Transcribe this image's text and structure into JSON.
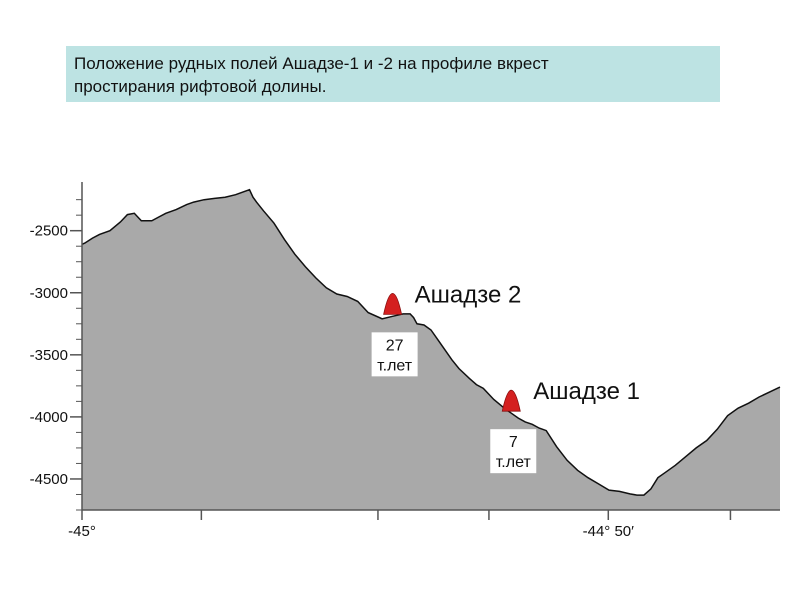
{
  "title": {
    "line1": "Положение рудных полей Ашадзе-1 и -2  на профиле вкрест",
    "line2": "простирания рифтовой долины."
  },
  "colors": {
    "title_bg": "#bde3e3",
    "profile_fill": "#a9a9a9",
    "marker": "#d42020"
  },
  "chart_data": {
    "type": "area",
    "title": "Положение рудных полей Ашадзе-1 и -2  на профиле вкрест простирания рифтовой долины.",
    "xlabel": "",
    "ylabel": "",
    "x": [
      0,
      0.004,
      0.015,
      0.025,
      0.04,
      0.055,
      0.065,
      0.075,
      0.085,
      0.1,
      0.11,
      0.12,
      0.135,
      0.15,
      0.16,
      0.175,
      0.19,
      0.205,
      0.22,
      0.23,
      0.24,
      0.245,
      0.25,
      0.26,
      0.275,
      0.29,
      0.305,
      0.32,
      0.335,
      0.35,
      0.365,
      0.38,
      0.395,
      0.41,
      0.43,
      0.445,
      0.46,
      0.47,
      0.475,
      0.48,
      0.49,
      0.5,
      0.51,
      0.52,
      0.53,
      0.54,
      0.555,
      0.565,
      0.575,
      0.59,
      0.605,
      0.615,
      0.625,
      0.635,
      0.645,
      0.655,
      0.665,
      0.68,
      0.695,
      0.71,
      0.725,
      0.74,
      0.755,
      0.77,
      0.785,
      0.795,
      0.805,
      0.815,
      0.825,
      0.835,
      0.85,
      0.865,
      0.88,
      0.895,
      0.91,
      0.925,
      0.94,
      0.955,
      0.97,
      0.985,
      1
    ],
    "y": [
      -2610,
      -2600,
      -2560,
      -2530,
      -2500,
      -2430,
      -2370,
      -2360,
      -2420,
      -2420,
      -2390,
      -2360,
      -2330,
      -2290,
      -2270,
      -2250,
      -2240,
      -2230,
      -2210,
      -2190,
      -2170,
      -2230,
      -2270,
      -2340,
      -2440,
      -2570,
      -2690,
      -2790,
      -2880,
      -2960,
      -3010,
      -3030,
      -3070,
      -3160,
      -3210,
      -3190,
      -3170,
      -3170,
      -3200,
      -3250,
      -3260,
      -3300,
      -3380,
      -3460,
      -3540,
      -3610,
      -3690,
      -3740,
      -3770,
      -3860,
      -3930,
      -3970,
      -4010,
      -4040,
      -4060,
      -4090,
      -4110,
      -4240,
      -4350,
      -4430,
      -4490,
      -4540,
      -4590,
      -4600,
      -4620,
      -4630,
      -4630,
      -4580,
      -4490,
      -4450,
      -4390,
      -4320,
      -4250,
      -4190,
      -4100,
      -3990,
      -3930,
      -3890,
      -3840,
      -3800,
      -3760
    ],
    "ylim": [
      -4750,
      -2140
    ],
    "y_ticks": [
      -2500,
      -3000,
      -3500,
      -4000,
      -4500
    ],
    "y_tick_labels": [
      "-2500",
      "-3000",
      "-3500",
      "-4000",
      "-4500"
    ],
    "y_minor_step": 125,
    "x_major_ticks": [
      0,
      0.171,
      0.424,
      0.583,
      0.754,
      0.929
    ],
    "x_tick_labels": [
      {
        "x": 0,
        "label": "-45°"
      },
      {
        "x": 0.754,
        "label": "-44° 50′"
      }
    ],
    "grid": false,
    "legend": "none",
    "annotations": [
      {
        "name": "Ашадзе 2",
        "x": 0.445,
        "y": -3190,
        "age": [
          "27",
          "т.лет"
        ]
      },
      {
        "name": "Ашадзе 1",
        "x": 0.615,
        "y": -3970,
        "age": [
          "7",
          "т.лет"
        ]
      }
    ]
  }
}
